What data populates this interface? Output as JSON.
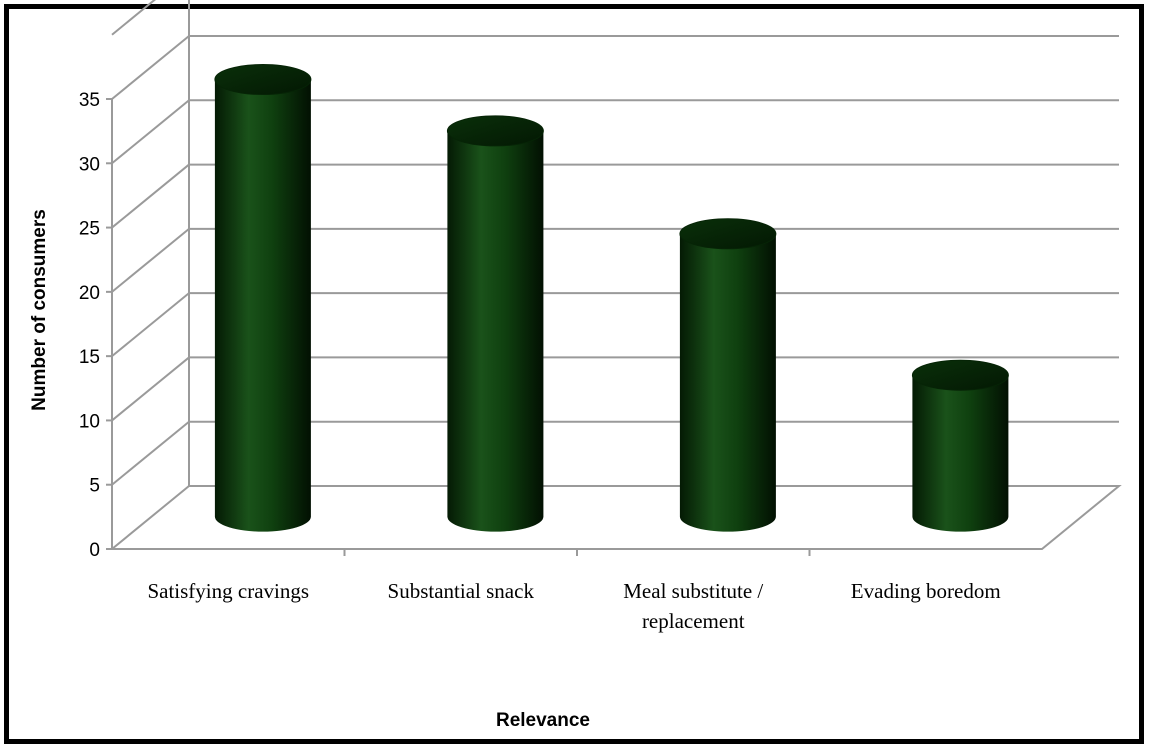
{
  "chart_data": {
    "type": "bar",
    "style": "3d-cylinder",
    "title": "",
    "xlabel": "Relevance",
    "ylabel": "Number of consumers",
    "categories": [
      [
        "Satisfying cravings"
      ],
      [
        "Substantial snack"
      ],
      [
        "Meal substitute /",
        "replacement"
      ],
      [
        "Evading boredom"
      ]
    ],
    "values": [
      34,
      30,
      22,
      11
    ],
    "ylim": [
      0,
      35
    ],
    "yticks": [
      0,
      5,
      10,
      15,
      20,
      25,
      30,
      35
    ],
    "grid": true,
    "legend": "none",
    "colors": {
      "bar": "#0d3d0d",
      "bar_dark": "#031503",
      "bar_light": "#1f5e1f",
      "grid": "#9a9a9a"
    }
  }
}
